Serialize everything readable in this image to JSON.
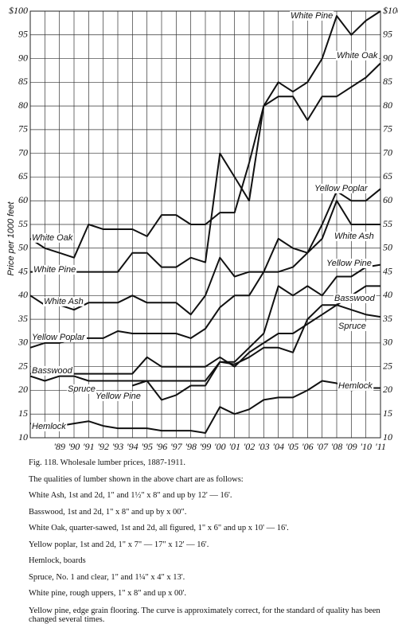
{
  "chart_data": {
    "type": "line",
    "y_label": "Price per 1000 feet",
    "categories": [
      null,
      null,
      "'89",
      "'90",
      "'91",
      "'92",
      "'93",
      "'94",
      "'95",
      "'96",
      "'97",
      "'98",
      "'99",
      "'00",
      "'01",
      "'02",
      "'03",
      "'04",
      "'05",
      "'06",
      "'07",
      "'08",
      "'09",
      "'10",
      "'11"
    ],
    "ylim": [
      10,
      100
    ],
    "yticks": [
      10,
      15,
      20,
      25,
      30,
      35,
      40,
      45,
      50,
      55,
      60,
      65,
      70,
      75,
      80,
      85,
      90,
      95,
      {
        "value": 100,
        "label": "$100"
      }
    ],
    "grid": true,
    "series": [
      {
        "name": "White Pine",
        "color": "#111111",
        "values": [
          45,
          45,
          45,
          45,
          45,
          45,
          45,
          49,
          49,
          46,
          46,
          48,
          47,
          70,
          65,
          60,
          80,
          85,
          83,
          85,
          90,
          99,
          95,
          98,
          100
        ]
      },
      {
        "name": "White Oak",
        "color": "#111111",
        "values": [
          52,
          50,
          49,
          48,
          55,
          54,
          54,
          54,
          52.5,
          57,
          57,
          55,
          55,
          57.5,
          57.5,
          68,
          80,
          82,
          82,
          77,
          82,
          82,
          84,
          86,
          89
        ]
      },
      {
        "name": "Yellow Poplar",
        "color": "#111111",
        "values": [
          29,
          30,
          30,
          31,
          31,
          31,
          32.5,
          32,
          32,
          32,
          32,
          31,
          33,
          37.5,
          40,
          40,
          45,
          52,
          50,
          49,
          55,
          62,
          60,
          60,
          62.5
        ]
      },
      {
        "name": "White Ash",
        "color": "#111111",
        "values": [
          40,
          38,
          38,
          37,
          38.5,
          38.5,
          38.5,
          40,
          38.5,
          38.5,
          38.5,
          36,
          40,
          48,
          44,
          45,
          45,
          45,
          46,
          49,
          52,
          60,
          55,
          55,
          55
        ]
      },
      {
        "name": "Yellow Pine",
        "color": "#111111",
        "values": [
          null,
          null,
          null,
          null,
          null,
          null,
          null,
          21,
          22,
          18,
          19,
          21,
          21,
          26,
          26,
          29,
          32,
          42,
          40,
          42,
          40,
          44,
          44,
          46,
          46.5
        ]
      },
      {
        "name": "Basswood",
        "color": "#111111",
        "values": [
          23.5,
          23.5,
          23.5,
          23.5,
          23.5,
          23.5,
          23.5,
          23.5,
          27,
          25,
          25,
          25,
          25,
          27,
          25,
          28,
          30,
          32,
          32,
          34,
          36,
          38,
          40,
          42,
          42
        ]
      },
      {
        "name": "Spruce",
        "color": "#111111",
        "values": [
          23,
          22,
          23,
          23,
          22,
          22,
          22,
          22,
          22,
          22,
          22,
          22,
          22,
          26,
          25.5,
          27,
          29,
          29,
          28,
          35,
          38,
          38,
          37,
          36,
          35.5
        ]
      },
      {
        "name": "Hemlock",
        "color": "#111111",
        "values": [
          13,
          12.5,
          12.5,
          13,
          13.5,
          12.5,
          12,
          12,
          12,
          11.5,
          11.5,
          11.5,
          11,
          16.5,
          15,
          16,
          18,
          18.5,
          18.5,
          20,
          22,
          21.5,
          20,
          20.5,
          20.5
        ]
      }
    ]
  },
  "caption": {
    "figure": "Fig. 118.   Wholesale lumber prices, 1887-1911.",
    "intro": "The qualities of lumber shown in the above chart are as follows:",
    "items": [
      "White Ash, 1st and 2d, 1\" and 1½\" x 8\" and up by 12' — 16'.",
      "Basswood, 1st and 2d, 1\" x 8\" and up by x 00\".",
      "White Oak, quarter-sawed, 1st and 2d, all figured, 1\" x 6\" and up x 10' — 16'.",
      "Yellow poplar, 1st and 2d, 1\" x 7\" — 17\" x 12' — 16'.",
      "Hemlock, boards",
      "Spruce, No. 1 and clear, 1\" and 1¼\" x 4\" x 13'.",
      "White pine, rough uppers, 1\" x 8\" and up x 00'.",
      "Yellow pine, edge grain flooring.  The curve is approximately correct, for the standard of quality has been changed several times."
    ]
  }
}
